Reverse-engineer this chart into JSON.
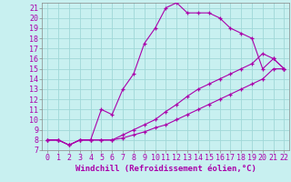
{
  "xlabel": "Windchill (Refroidissement éolien,°C)",
  "xlim": [
    -0.5,
    22.5
  ],
  "ylim": [
    7,
    21.5
  ],
  "xticks": [
    0,
    1,
    2,
    3,
    4,
    5,
    6,
    7,
    8,
    9,
    10,
    11,
    12,
    13,
    14,
    15,
    16,
    17,
    18,
    19,
    20,
    21,
    22
  ],
  "yticks": [
    7,
    8,
    9,
    10,
    11,
    12,
    13,
    14,
    15,
    16,
    17,
    18,
    19,
    20,
    21
  ],
  "bg_color": "#c8f0f0",
  "line_color": "#aa00aa",
  "grid_color": "#a0d8d8",
  "curves": [
    {
      "x": [
        0,
        1,
        2,
        3,
        4,
        5,
        6,
        7,
        8,
        9,
        10,
        11,
        12,
        13,
        14,
        15,
        16,
        17,
        18,
        19,
        20,
        21,
        22
      ],
      "y": [
        8,
        8,
        7.5,
        8,
        8,
        11,
        10.5,
        13,
        14.5,
        17.5,
        19,
        21,
        21.5,
        20.5,
        20.5,
        20.5,
        20,
        19,
        18.5,
        18,
        15,
        16,
        15
      ]
    },
    {
      "x": [
        0,
        1,
        2,
        3,
        4,
        5,
        6,
        7,
        8,
        9,
        10,
        11,
        12,
        13,
        14,
        15,
        16,
        17,
        18,
        19,
        20,
        21,
        22
      ],
      "y": [
        8,
        8,
        7.5,
        8,
        8,
        8,
        8,
        8.5,
        9,
        9.5,
        10,
        10.8,
        11.5,
        12.3,
        13,
        13.5,
        14,
        14.5,
        15,
        15.5,
        16.5,
        16,
        15
      ]
    },
    {
      "x": [
        0,
        1,
        2,
        3,
        4,
        5,
        6,
        7,
        8,
        9,
        10,
        11,
        12,
        13,
        14,
        15,
        16,
        17,
        18,
        19,
        20,
        21,
        22
      ],
      "y": [
        8,
        8,
        7.5,
        8,
        8,
        8,
        8,
        8.2,
        8.5,
        8.8,
        9.2,
        9.5,
        10,
        10.5,
        11,
        11.5,
        12,
        12.5,
        13,
        13.5,
        14,
        15,
        15
      ]
    }
  ],
  "xlabel_fontsize": 6.5,
  "tick_fontsize": 6.0
}
